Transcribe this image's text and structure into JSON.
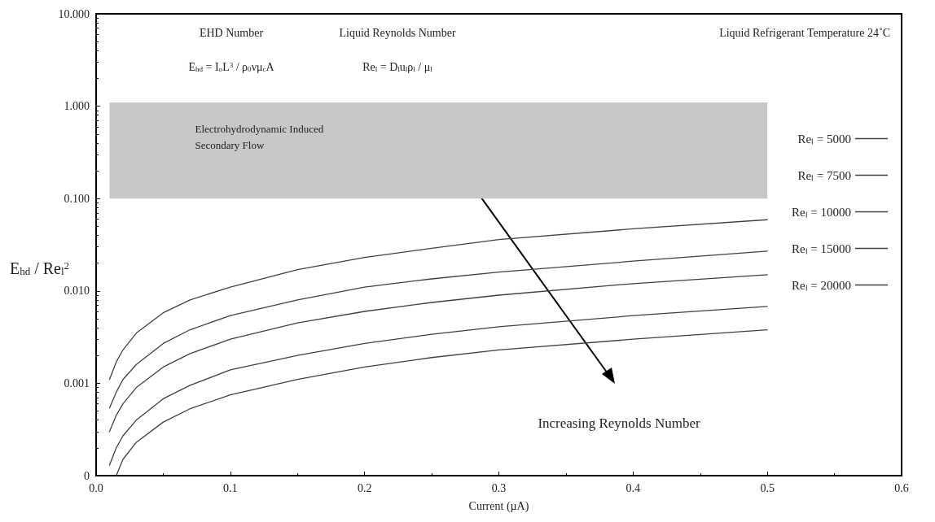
{
  "chart_data": {
    "type": "line",
    "xlabel": "Current (µA)",
    "ylabel": "E$_{hd}$ / Re$_{l}$$^{2}$",
    "annotations": [
      "EHD Number",
      "E$_{hd}$ = I$_{o}$L$^{3}$ / ρ$_{0}$νμ$_{c}$A",
      "Liquid Reynolds Number",
      "Re$_{l}$ = D$_{l}$u$_{l}$ρ$_{l}$ / μ$_{l}$",
      "Liquid Refrigerant Temperature 24˚C",
      "Increasing Reynolds Number"
    ],
    "bands": [
      {
        "axis": "y",
        "from": 0.1,
        "to": 1.1,
        "label": "Electrohydrodynamic Induced\nSecondary Flow",
        "color": "#c8c8c8"
      }
    ],
    "series": [
      {
        "name": "Reₗ = 5000",
        "color": "#404040",
        "x": [
          0.01,
          0.015,
          0.02,
          0.03,
          0.05,
          0.07,
          0.1,
          0.15,
          0.2,
          0.25,
          0.3,
          0.4,
          0.5
        ],
        "values": [
          0.0011,
          0.0017,
          0.0023,
          0.0035,
          0.0058,
          0.008,
          0.011,
          0.017,
          0.023,
          0.029,
          0.036,
          0.047,
          0.059
        ]
      },
      {
        "name": "Reₗ = 7500",
        "color": "#404040",
        "x": [
          0.01,
          0.015,
          0.02,
          0.03,
          0.05,
          0.07,
          0.1,
          0.15,
          0.2,
          0.25,
          0.3,
          0.4,
          0.5
        ],
        "values": [
          0.00054,
          0.0008,
          0.0011,
          0.0016,
          0.0027,
          0.0038,
          0.0054,
          0.008,
          0.011,
          0.0135,
          0.016,
          0.021,
          0.027
        ]
      },
      {
        "name": "Reₗ = 10000",
        "color": "#404040",
        "x": [
          0.01,
          0.015,
          0.02,
          0.03,
          0.05,
          0.07,
          0.1,
          0.15,
          0.2,
          0.25,
          0.3,
          0.4,
          0.5
        ],
        "values": [
          0.0003,
          0.00045,
          0.0006,
          0.0009,
          0.0015,
          0.0021,
          0.003,
          0.0045,
          0.006,
          0.0075,
          0.009,
          0.012,
          0.015
        ]
      },
      {
        "name": "Reₗ = 15000",
        "color": "#404040",
        "x": [
          0.01,
          0.015,
          0.02,
          0.03,
          0.05,
          0.07,
          0.1,
          0.15,
          0.2,
          0.25,
          0.3,
          0.4,
          0.5
        ],
        "values": [
          0.00013,
          0.0002,
          0.00027,
          0.0004,
          0.00068,
          0.00095,
          0.0014,
          0.002,
          0.0027,
          0.0034,
          0.0041,
          0.0054,
          0.0068
        ]
      },
      {
        "name": "Reₗ = 20000",
        "color": "#404040",
        "x": [
          0.015,
          0.02,
          0.03,
          0.05,
          0.07,
          0.1,
          0.15,
          0.2,
          0.25,
          0.3,
          0.4,
          0.5
        ],
        "values": [
          0.0001,
          0.00015,
          0.00023,
          0.00038,
          0.00053,
          0.00075,
          0.0011,
          0.0015,
          0.0019,
          0.0023,
          0.003,
          0.0038
        ]
      }
    ],
    "xlim": [
      0,
      0.6
    ],
    "xticks": [
      {
        "value": 0,
        "label": "0.0"
      },
      0.1,
      0.2,
      0.3,
      0.4,
      0.5,
      0.6
    ],
    "log": "y",
    "ylim": [
      0.0001,
      10
    ],
    "yticks": [
      {
        "value": 0.0001,
        "label": "0"
      },
      {
        "value": 0.001,
        "label": "0.001"
      },
      {
        "value": 0.01,
        "label": "0.010"
      },
      {
        "value": 0.1,
        "label": "0.100"
      },
      {
        "value": 1,
        "label": "1.000"
      },
      {
        "value": 10,
        "label": "10.000"
      }
    ],
    "grid": false,
    "legend": "right",
    "marker": "none",
    "line_style": "solid"
  }
}
